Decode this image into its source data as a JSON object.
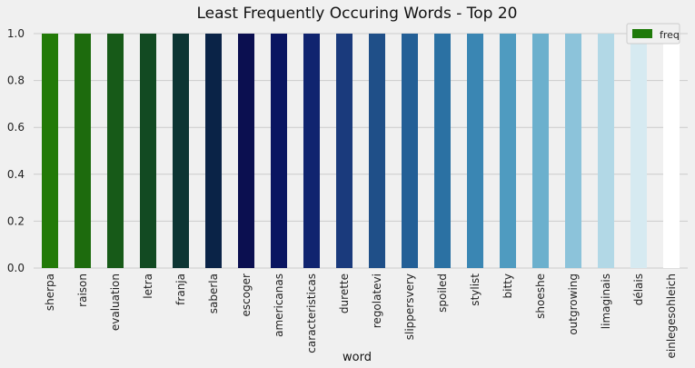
{
  "chart_data": {
    "type": "bar",
    "title": "Least Frequently Occuring Words - Top 20",
    "xlabel": "word",
    "ylabel": "",
    "ylim": [
      0,
      1.0
    ],
    "yticks": [
      "0.0",
      "0.2",
      "0.4",
      "0.6",
      "0.8",
      "1.0"
    ],
    "grid": true,
    "legend_position": "top-right",
    "categories": [
      "sherpa",
      "raison",
      "evaluation",
      "letra",
      "franja",
      "saberla",
      "escoger",
      "americanas",
      "caracteristicas",
      "durette",
      "regolatevi",
      "slippersvery",
      "spoiled",
      "stylist",
      "bitty",
      "shoeshe",
      "outgrowing",
      "limaginais",
      "délais",
      "einlegesohleich"
    ],
    "series": [
      {
        "name": "freq",
        "values": [
          1,
          1,
          1,
          1,
          1,
          1,
          1,
          1,
          1,
          1,
          1,
          1,
          1,
          1,
          1,
          1,
          1,
          1,
          1,
          1
        ],
        "legend_color": "#1f7a0a",
        "colors": [
          "#227a07",
          "#1d6b0d",
          "#175a18",
          "#124a22",
          "#0d3533",
          "#0a2347",
          "#0b0f50",
          "#0a1561",
          "#10246f",
          "#1a3a7c",
          "#1f4f88",
          "#235f96",
          "#2b71a3",
          "#3a86b3",
          "#4f9bc0",
          "#6cb0cd",
          "#8cc3da",
          "#b2d8e6",
          "#d6eaf1",
          "#ffffff"
        ]
      }
    ]
  }
}
